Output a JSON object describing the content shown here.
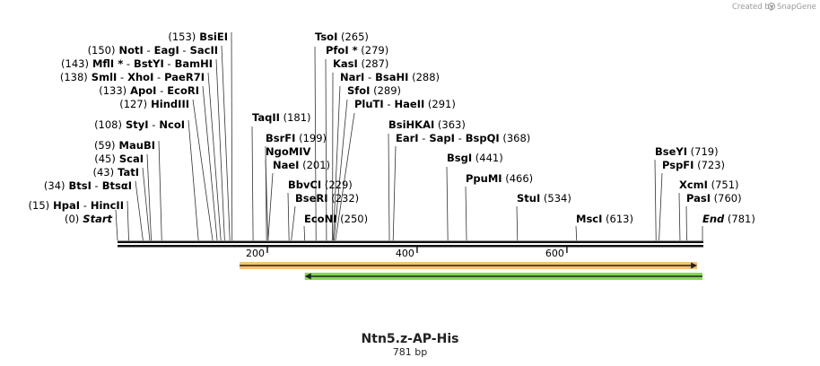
{
  "credit_text": "Created by",
  "brand_name": "SnapGene",
  "sequence_name": "Ntn5.z-AP-His",
  "sequence_length": "781 bp",
  "total_bp": 781,
  "axis_ticks": [
    {
      "bp": 200,
      "label": "200"
    },
    {
      "bp": 400,
      "label": "400"
    },
    {
      "bp": 600,
      "label": "600"
    }
  ],
  "features": [
    {
      "name": "feature-orange-forward",
      "start_bp": 163,
      "end_bp": 774,
      "direction": "forward",
      "color": "#f5b95a",
      "stroke": "#c97a1a"
    },
    {
      "name": "feature-green-reverse",
      "start_bp": 250,
      "end_bp": 781,
      "direction": "reverse",
      "color": "#6fcf3a",
      "stroke": "#3d8f18"
    }
  ],
  "site_labels": [
    {
      "id": "start",
      "pos": 0,
      "parts": [
        {
          "t": "(0)",
          "s": "num"
        },
        {
          "t": "Start",
          "s": "ital"
        }
      ]
    },
    {
      "id": "hpai",
      "pos": 15,
      "parts": [
        {
          "t": "(15)",
          "s": "num"
        },
        {
          "t": "HpaI",
          "s": "enz"
        },
        {
          "t": "-",
          "s": "num"
        },
        {
          "t": "HincII",
          "s": "enz"
        }
      ]
    },
    {
      "id": "btsi",
      "pos": 34,
      "parts": [
        {
          "t": "(34)",
          "s": "num"
        },
        {
          "t": "BtsI",
          "s": "enz"
        },
        {
          "t": "-",
          "s": "num"
        },
        {
          "t": "BtsαI",
          "s": "enz"
        }
      ]
    },
    {
      "id": "tati",
      "pos": 43,
      "parts": [
        {
          "t": "(43)",
          "s": "num"
        },
        {
          "t": "TatI",
          "s": "enz"
        }
      ]
    },
    {
      "id": "scai",
      "pos": 45,
      "parts": [
        {
          "t": "(45)",
          "s": "num"
        },
        {
          "t": "ScaI",
          "s": "enz"
        }
      ]
    },
    {
      "id": "maubi",
      "pos": 59,
      "parts": [
        {
          "t": "(59)",
          "s": "num"
        },
        {
          "t": "MauBI",
          "s": "enz"
        }
      ]
    },
    {
      "id": "styi",
      "pos": 108,
      "parts": [
        {
          "t": "(108)",
          "s": "num"
        },
        {
          "t": "StyI",
          "s": "enz"
        },
        {
          "t": "-",
          "s": "num"
        },
        {
          "t": "NcoI",
          "s": "enz"
        }
      ]
    },
    {
      "id": "hindiii",
      "pos": 127,
      "parts": [
        {
          "t": "(127)",
          "s": "num"
        },
        {
          "t": "HindIII",
          "s": "enz"
        }
      ]
    },
    {
      "id": "apoi",
      "pos": 133,
      "parts": [
        {
          "t": "(133)",
          "s": "num"
        },
        {
          "t": "ApoI",
          "s": "enz"
        },
        {
          "t": "-",
          "s": "num"
        },
        {
          "t": "EcoRI",
          "s": "enz"
        }
      ]
    },
    {
      "id": "smli",
      "pos": 138,
      "parts": [
        {
          "t": "(138)",
          "s": "num"
        },
        {
          "t": "SmlI",
          "s": "enz"
        },
        {
          "t": "-",
          "s": "num"
        },
        {
          "t": "XhoI",
          "s": "enz"
        },
        {
          "t": "-",
          "s": "num"
        },
        {
          "t": "PaeR7I",
          "s": "enz"
        }
      ]
    },
    {
      "id": "mfli",
      "pos": 143,
      "parts": [
        {
          "t": "(143)",
          "s": "num"
        },
        {
          "t": "MflI *",
          "s": "enz"
        },
        {
          "t": "-",
          "s": "num"
        },
        {
          "t": "BstYI",
          "s": "enz"
        },
        {
          "t": "-",
          "s": "num"
        },
        {
          "t": "BamHI",
          "s": "enz"
        }
      ]
    },
    {
      "id": "noti",
      "pos": 150,
      "parts": [
        {
          "t": "(150)",
          "s": "num"
        },
        {
          "t": "NotI",
          "s": "enz"
        },
        {
          "t": "-",
          "s": "num"
        },
        {
          "t": "EagI",
          "s": "enz"
        },
        {
          "t": "-",
          "s": "num"
        },
        {
          "t": "SacII",
          "s": "enz"
        }
      ]
    },
    {
      "id": "bsiei",
      "pos": 153,
      "parts": [
        {
          "t": "(153)",
          "s": "num"
        },
        {
          "t": "BsiEI",
          "s": "enz"
        }
      ]
    },
    {
      "id": "taqii",
      "pos": 181,
      "parts": [
        {
          "t": "TaqII",
          "s": "enz"
        },
        {
          "t": "(181)",
          "s": "num"
        }
      ]
    },
    {
      "id": "bsrfi",
      "pos": 199,
      "parts": [
        {
          "t": "BsrFI",
          "s": "enz"
        },
        {
          "t": "(199)",
          "s": "num"
        }
      ]
    },
    {
      "id": "ngomiv",
      "pos": 201,
      "parts": [
        {
          "t": "NgoMIV",
          "s": "enz"
        }
      ]
    },
    {
      "id": "naei",
      "pos": 201,
      "parts": [
        {
          "t": "NaeI",
          "s": "enz"
        },
        {
          "t": "(201)",
          "s": "num"
        }
      ]
    },
    {
      "id": "bbvci",
      "pos": 229,
      "parts": [
        {
          "t": "BbvCI",
          "s": "enz"
        },
        {
          "t": "(229)",
          "s": "num"
        }
      ]
    },
    {
      "id": "bseri",
      "pos": 232,
      "parts": [
        {
          "t": "BseRI",
          "s": "enz"
        },
        {
          "t": "(232)",
          "s": "num"
        }
      ]
    },
    {
      "id": "econi",
      "pos": 250,
      "parts": [
        {
          "t": "EcoNI",
          "s": "enz"
        },
        {
          "t": "(250)",
          "s": "num"
        }
      ]
    },
    {
      "id": "tsoi",
      "pos": 265,
      "parts": [
        {
          "t": "TsoI",
          "s": "enz"
        },
        {
          "t": "(265)",
          "s": "num"
        }
      ]
    },
    {
      "id": "pfoi",
      "pos": 279,
      "parts": [
        {
          "t": "PfoI *",
          "s": "enz"
        },
        {
          "t": "(279)",
          "s": "num"
        }
      ]
    },
    {
      "id": "kasi",
      "pos": 287,
      "parts": [
        {
          "t": "KasI",
          "s": "enz"
        },
        {
          "t": "(287)",
          "s": "num"
        }
      ]
    },
    {
      "id": "nari",
      "pos": 288,
      "parts": [
        {
          "t": "NarI",
          "s": "enz"
        },
        {
          "t": "-",
          "s": "num"
        },
        {
          "t": "BsaHI",
          "s": "enz"
        },
        {
          "t": "(288)",
          "s": "num"
        }
      ]
    },
    {
      "id": "sfoi",
      "pos": 289,
      "parts": [
        {
          "t": "SfoI",
          "s": "enz"
        },
        {
          "t": "(289)",
          "s": "num"
        }
      ]
    },
    {
      "id": "pluti",
      "pos": 291,
      "parts": [
        {
          "t": "PluTI",
          "s": "enz"
        },
        {
          "t": "-",
          "s": "num"
        },
        {
          "t": "HaeII",
          "s": "enz"
        },
        {
          "t": "(291)",
          "s": "num"
        }
      ]
    },
    {
      "id": "bsihkai",
      "pos": 363,
      "parts": [
        {
          "t": "BsiHKAI",
          "s": "enz"
        },
        {
          "t": "(363)",
          "s": "num"
        }
      ]
    },
    {
      "id": "eari",
      "pos": 368,
      "parts": [
        {
          "t": "EarI",
          "s": "enz"
        },
        {
          "t": "-",
          "s": "num"
        },
        {
          "t": "SapI",
          "s": "enz"
        },
        {
          "t": "-",
          "s": "num"
        },
        {
          "t": "BspQI",
          "s": "enz"
        },
        {
          "t": "(368)",
          "s": "num"
        }
      ]
    },
    {
      "id": "bsgi",
      "pos": 441,
      "parts": [
        {
          "t": "BsgI",
          "s": "enz"
        },
        {
          "t": "(441)",
          "s": "num"
        }
      ]
    },
    {
      "id": "ppumi",
      "pos": 466,
      "parts": [
        {
          "t": "PpuMI",
          "s": "enz"
        },
        {
          "t": "(466)",
          "s": "num"
        }
      ]
    },
    {
      "id": "stui",
      "pos": 534,
      "parts": [
        {
          "t": "StuI",
          "s": "enz"
        },
        {
          "t": "(534)",
          "s": "num"
        }
      ]
    },
    {
      "id": "msci",
      "pos": 613,
      "parts": [
        {
          "t": "MscI",
          "s": "enz"
        },
        {
          "t": "(613)",
          "s": "num"
        }
      ]
    },
    {
      "id": "bseyi",
      "pos": 719,
      "parts": [
        {
          "t": "BseYI",
          "s": "enz"
        },
        {
          "t": "(719)",
          "s": "num"
        }
      ]
    },
    {
      "id": "pspfi",
      "pos": 723,
      "parts": [
        {
          "t": "PspFI",
          "s": "enz"
        },
        {
          "t": "(723)",
          "s": "num"
        }
      ]
    },
    {
      "id": "xcmi",
      "pos": 751,
      "parts": [
        {
          "t": "XcmI",
          "s": "enz"
        },
        {
          "t": "(751)",
          "s": "num"
        }
      ]
    },
    {
      "id": "pasi",
      "pos": 760,
      "parts": [
        {
          "t": "PasI",
          "s": "enz"
        },
        {
          "t": "(760)",
          "s": "num"
        }
      ]
    },
    {
      "id": "end",
      "pos": 781,
      "parts": [
        {
          "t": "End",
          "s": "ital"
        },
        {
          "t": "(781)",
          "s": "num"
        }
      ]
    }
  ]
}
